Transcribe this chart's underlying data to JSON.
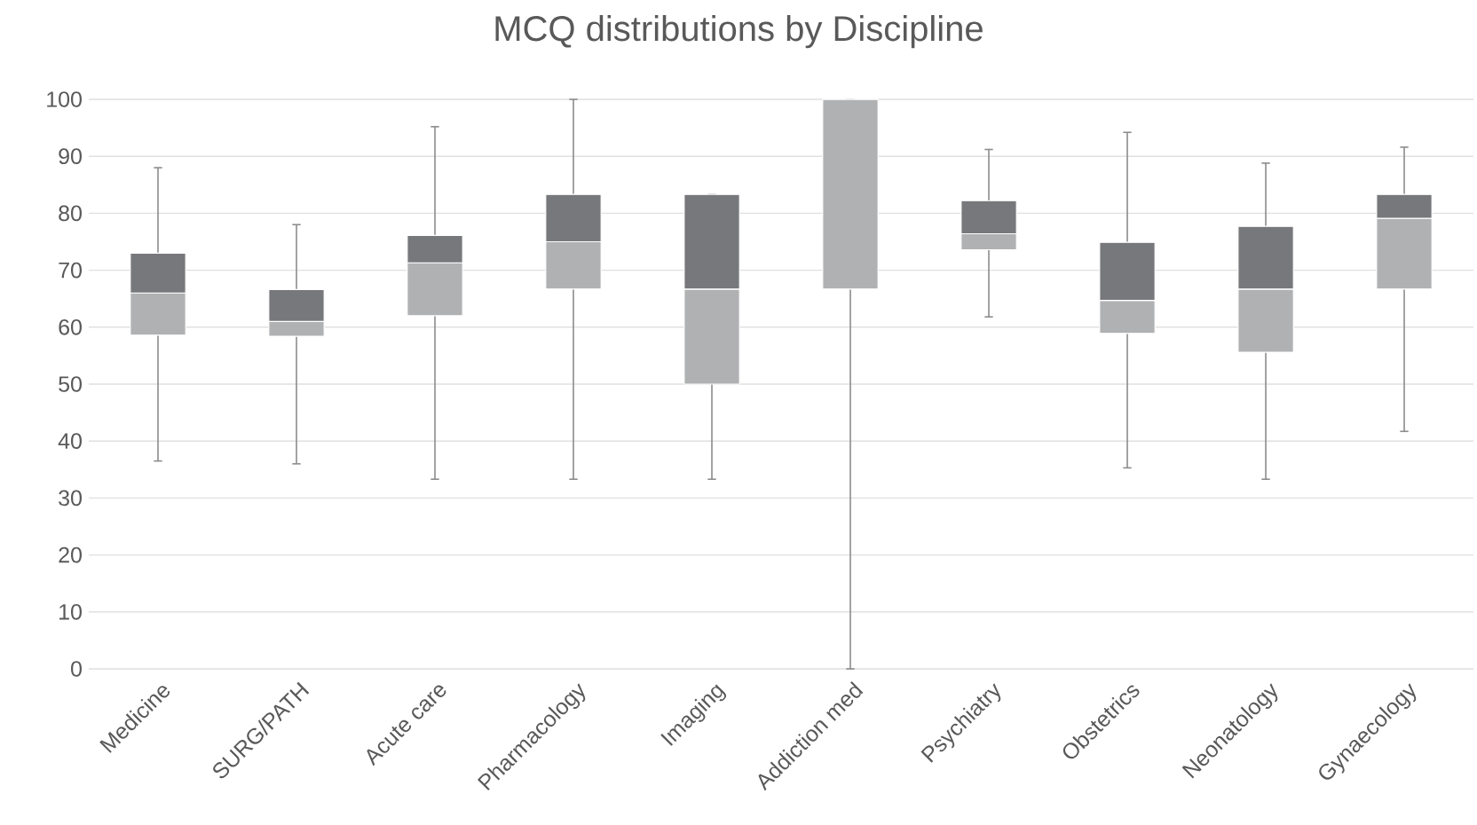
{
  "chart_data": {
    "type": "box",
    "title": "MCQ distributions by Discipline",
    "categories": [
      "Medicine",
      "SURG/PATH",
      "Acute care",
      "Pharmacology",
      "Imaging",
      "Addiction med",
      "Psychiatry",
      "Obstetrics",
      "Neonatology",
      "Gynaecology"
    ],
    "boxes": [
      {
        "low": 36.5,
        "q1": 58.6,
        "median": 66,
        "q3": 73,
        "high": 88
      },
      {
        "low": 36,
        "q1": 58.4,
        "median": 61,
        "q3": 66.6,
        "high": 78
      },
      {
        "low": 33.3,
        "q1": 62,
        "median": 71.3,
        "q3": 76.1,
        "high": 95.2
      },
      {
        "low": 33.3,
        "q1": 66.7,
        "median": 75,
        "q3": 83.3,
        "high": 100
      },
      {
        "low": 33.3,
        "q1": 50,
        "median": 66.7,
        "q3": 83.3,
        "high": 83.3
      },
      {
        "low": 0,
        "q1": 66.7,
        "median": 100,
        "q3": 100,
        "high": 100
      },
      {
        "low": 61.8,
        "q1": 73.6,
        "median": 76.4,
        "q3": 82.2,
        "high": 91.2
      },
      {
        "low": 35.3,
        "q1": 58.9,
        "median": 64.7,
        "q3": 74.9,
        "high": 94.2
      },
      {
        "low": 33.3,
        "q1": 55.6,
        "median": 66.7,
        "q3": 77.7,
        "high": 88.8
      },
      {
        "low": 41.7,
        "q1": 66.7,
        "median": 79.1,
        "q3": 83.3,
        "high": 91.6
      }
    ],
    "colors": [
      "#b0b1b3",
      "#b0b1b3",
      "#b0b1b3",
      "#b0b1b3",
      "#b0b1b3",
      "#b0b1b3",
      "#b0b1b3",
      "#b0b1b3",
      "#b0b1b3",
      "#b0b1b3"
    ],
    "color": "#77787b",
    "ylim": [
      0,
      100
    ],
    "yticks": [
      0,
      10,
      20,
      30,
      40,
      50,
      60,
      70,
      80,
      90,
      100
    ],
    "grid": "y"
  }
}
